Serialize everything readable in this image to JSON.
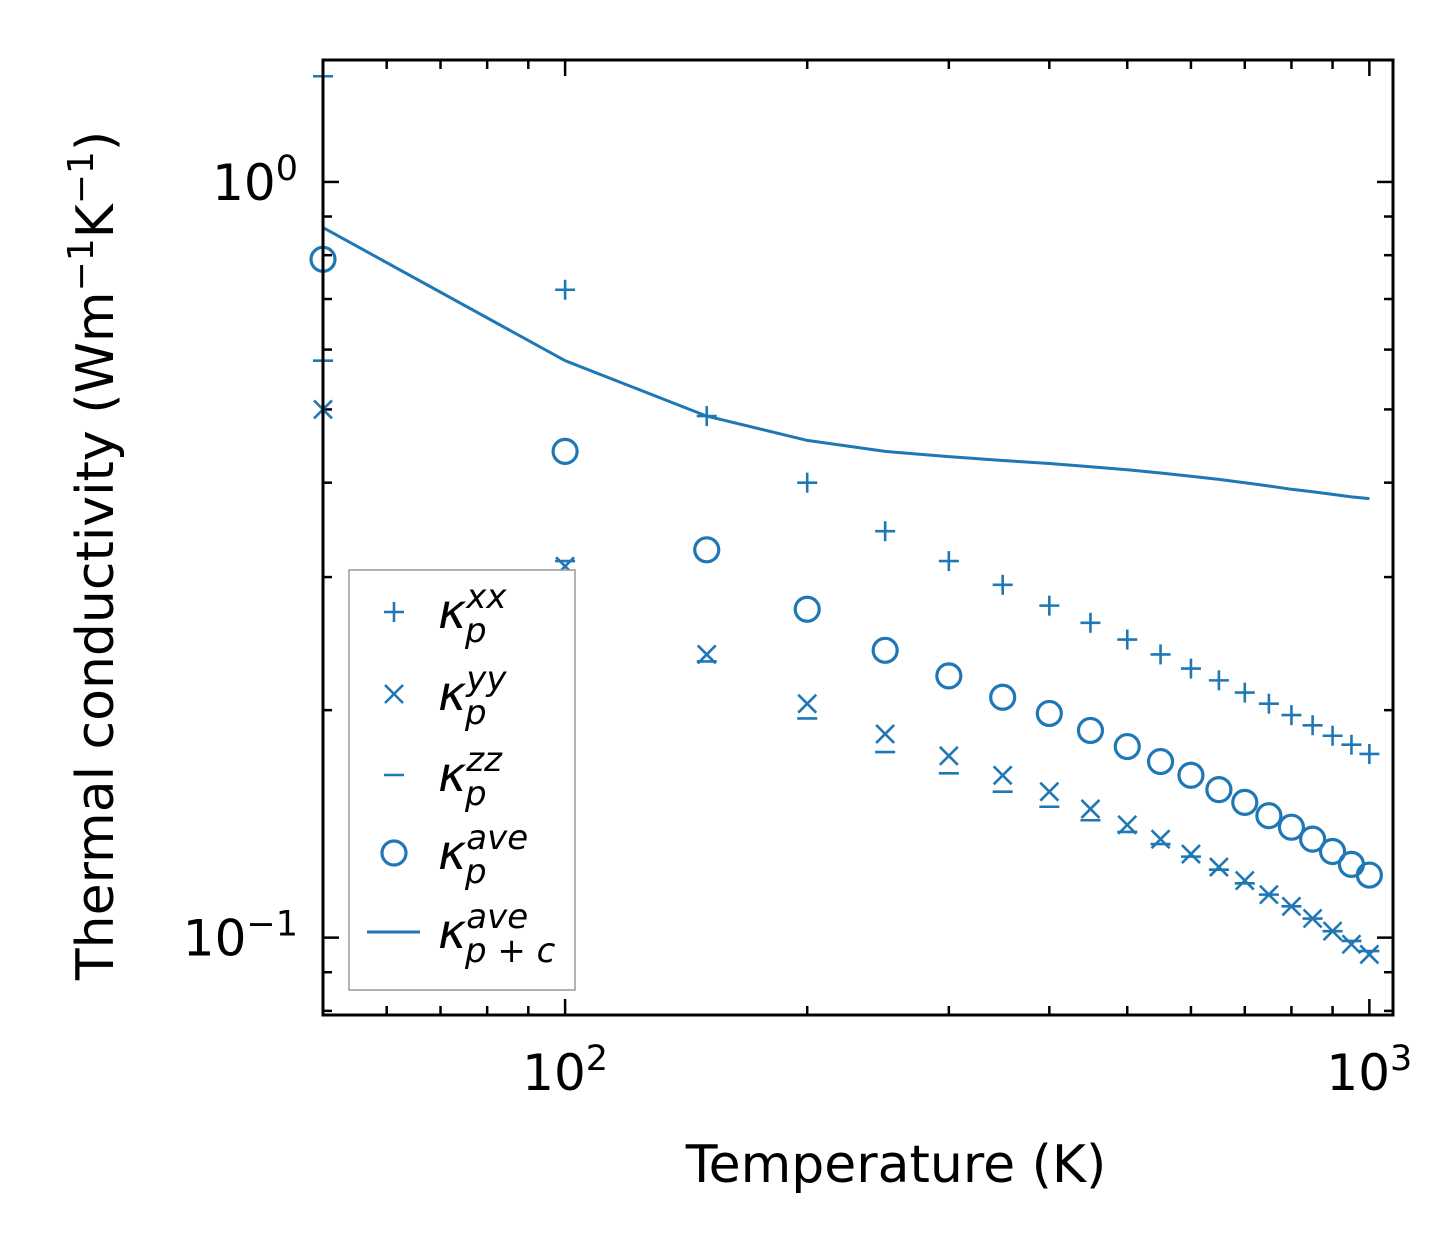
{
  "chart_data": {
    "type": "scatter",
    "xscale": "log",
    "yscale": "log",
    "xlim": [
      50,
      1070
    ],
    "ylim": [
      0.079,
      1.45
    ],
    "xlabel": "Temperature (K)",
    "ylabel_parts": {
      "base": "Thermal conductivity (Wm",
      "exp1": "−1",
      "mid": "K",
      "exp2": "−1",
      "end": ")"
    },
    "x_ticks": [
      {
        "value": 100,
        "base": "10",
        "exp": "2"
      },
      {
        "value": 1000,
        "base": "10",
        "exp": "3"
      }
    ],
    "y_ticks": [
      {
        "value": 1,
        "base": "10",
        "exp": "0"
      },
      {
        "value": 0.1,
        "base": "10",
        "exp": "−1"
      }
    ],
    "color": "#1f77b4",
    "legend_position": "lower-left",
    "x": [
      50,
      100,
      150,
      200,
      250,
      300,
      350,
      400,
      450,
      500,
      550,
      600,
      650,
      700,
      750,
      800,
      850,
      900,
      950,
      1000
    ],
    "series": [
      {
        "name": "kappa_p_xx",
        "marker": "+",
        "legend": {
          "base": "κ",
          "sub": "p",
          "sup": "xx"
        },
        "values": [
          1.38,
          0.72,
          0.49,
          0.4,
          0.345,
          0.315,
          0.293,
          0.275,
          0.261,
          0.248,
          0.237,
          0.227,
          0.219,
          0.211,
          0.204,
          0.197,
          0.191,
          0.185,
          0.18,
          0.175
        ]
      },
      {
        "name": "kappa_p_yy",
        "marker": "x",
        "legend": {
          "base": "κ",
          "sub": "p",
          "sup": "yy"
        },
        "values": [
          0.5,
          0.31,
          0.237,
          0.204,
          0.186,
          0.174,
          0.164,
          0.156,
          0.148,
          0.141,
          0.135,
          0.129,
          0.124,
          0.119,
          0.114,
          0.11,
          0.106,
          0.102,
          0.098,
          0.095
        ]
      },
      {
        "name": "kappa_p_zz",
        "marker": "_",
        "legend": {
          "base": "κ",
          "sub": "p",
          "sup": "zz"
        },
        "values": [
          0.58,
          0.315,
          0.232,
          0.195,
          0.176,
          0.165,
          0.156,
          0.149,
          0.143,
          0.138,
          0.133,
          0.128,
          0.123,
          0.118,
          0.114,
          0.11,
          0.106,
          0.102,
          0.099,
          0.096
        ]
      },
      {
        "name": "kappa_p_ave",
        "marker": "o",
        "legend": {
          "base": "κ",
          "sub": "p",
          "sup": "ave"
        },
        "values": [
          0.79,
          0.44,
          0.326,
          0.272,
          0.24,
          0.222,
          0.208,
          0.198,
          0.188,
          0.179,
          0.171,
          0.164,
          0.157,
          0.151,
          0.145,
          0.14,
          0.135,
          0.13,
          0.125,
          0.121
        ]
      },
      {
        "name": "kappa_p+c_ave",
        "marker": "line",
        "legend": {
          "base": "κ",
          "sub": "p + c",
          "sup": "ave"
        },
        "values": [
          0.87,
          0.58,
          0.49,
          0.455,
          0.44,
          0.433,
          0.428,
          0.424,
          0.42,
          0.416,
          0.412,
          0.408,
          0.404,
          0.4,
          0.396,
          0.392,
          0.389,
          0.386,
          0.383,
          0.381
        ]
      }
    ]
  }
}
